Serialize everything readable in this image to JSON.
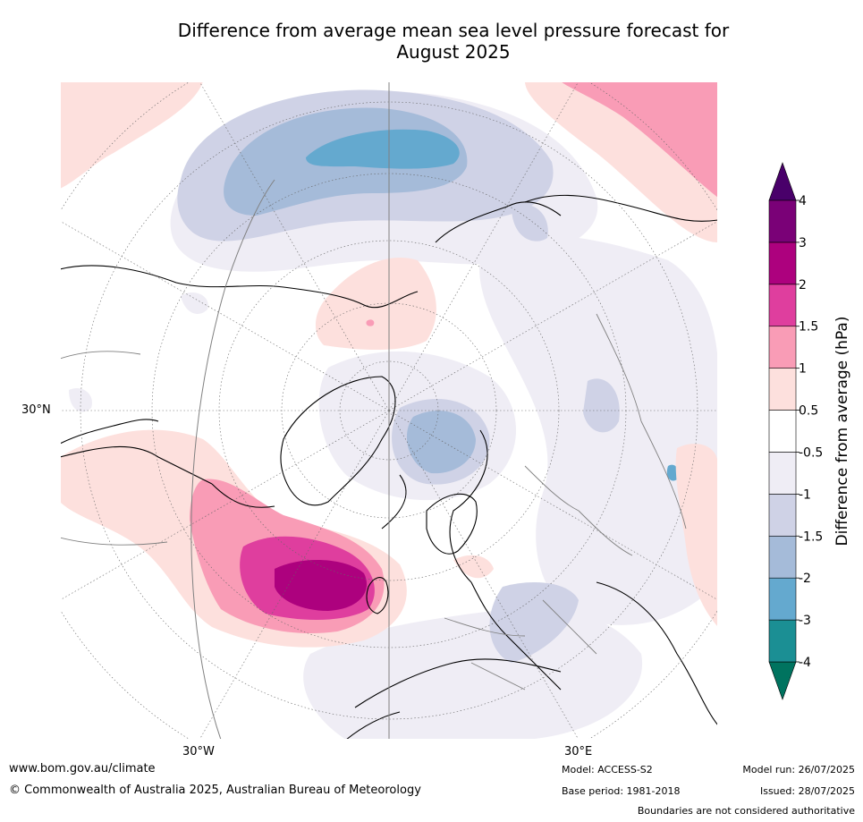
{
  "title": {
    "line1": "Difference from average mean sea level pressure forecast for",
    "line2": "August 2025"
  },
  "map": {
    "projection": "north-polar-stereographic",
    "lat_label": "30°N",
    "lon_labels": [
      "30°W",
      "30°E"
    ]
  },
  "colorbar": {
    "label": "Difference from average (hPa)",
    "ticks": [
      "-4",
      "-3",
      "-2",
      "-1.5",
      "-1",
      "-0.5",
      "0.5",
      "1",
      "1.5",
      "2",
      "3",
      "4"
    ],
    "colors": {
      "below": "#00735f",
      "bins": [
        "#1b8f94",
        "#64a9cf",
        "#a5bbd9",
        "#cfd2e6",
        "#efedf5",
        "#ffffff",
        "#fde0dd",
        "#f99cb6",
        "#df3e9e",
        "#ad017e",
        "#7a0177"
      ],
      "above": "#49006a"
    }
  },
  "anomalies": {
    "north_atlantic_high_max": "3",
    "pacific_low_min": "-2"
  },
  "footer": {
    "website": "www.bom.gov.au/climate",
    "copyright": "© Commonwealth of Australia 2025, Australian Bureau of Meteorology",
    "model": "Model: ACCESS-S2",
    "base_period": "Base period: 1981-2018",
    "model_run": "Model run: 26/07/2025",
    "issued": "Issued: 28/07/2025",
    "disclaimer": "Boundaries are not considered authoritative"
  }
}
